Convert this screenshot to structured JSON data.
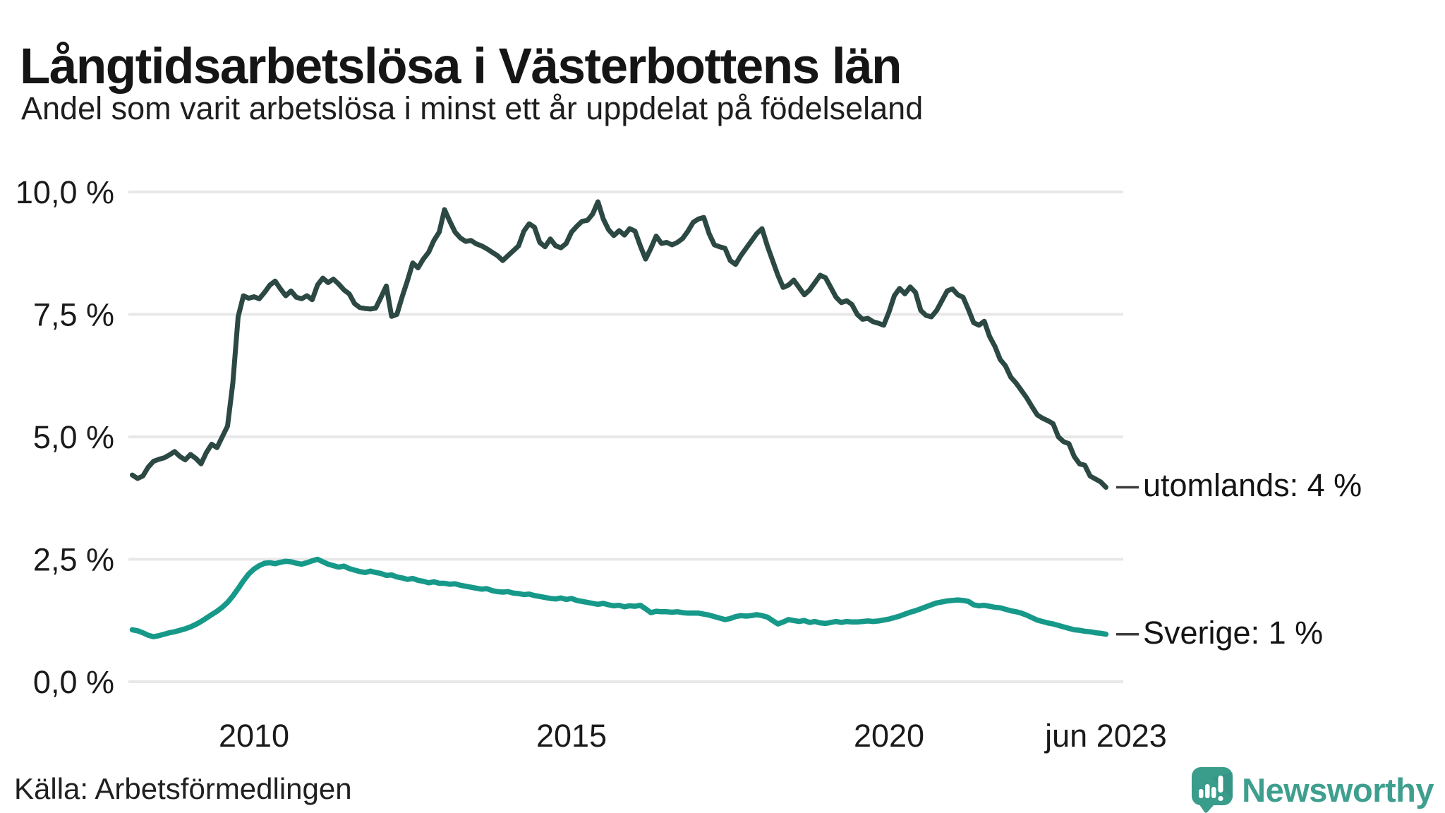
{
  "page": {
    "title": "Långtidsarbetslösa i Västerbottens län",
    "subtitle": "Andel som varit arbetslösa i minst ett år uppdelat på födelseland",
    "source": "Källa: Arbetsförmedlingen",
    "branding": {
      "name": "Newsworthy",
      "icon": "bar-chart-speech-bubble-icon",
      "text_color": "#3f9f8e",
      "bubble_color": "#3a9c8b"
    }
  },
  "chart_data": {
    "type": "line",
    "title": "Långtidsarbetslösa i Västerbottens län",
    "subtitle": "Andel som varit arbetslösa i minst ett år uppdelat på födelseland",
    "grid": true,
    "grid_color": "#e8e8ea",
    "ylim": [
      0,
      10
    ],
    "y_unit": "%",
    "y_ticks": [
      {
        "label": "0,0 %",
        "value": 0
      },
      {
        "label": "2,5 %",
        "value": 2.5
      },
      {
        "label": "5,0 %",
        "value": 5
      },
      {
        "label": "7,5 %",
        "value": 7.5
      },
      {
        "label": "10,0 %",
        "value": 10
      }
    ],
    "x_start": {
      "year": 2008,
      "month": 2
    },
    "x_end": {
      "year": 2023,
      "month": 6
    },
    "x_ticks": [
      {
        "label": "2010",
        "t": 2010.0
      },
      {
        "label": "2015",
        "t": 2015.0
      },
      {
        "label": "2020",
        "t": 2020.0
      },
      {
        "label": "jun 2023",
        "t": 2023.417
      }
    ],
    "series": [
      {
        "name": "utomlands",
        "end_label": "utomlands: 4 %",
        "end_value_text": "4 %",
        "color": "#2c4843",
        "stroke_width": 7,
        "values": [
          4.22,
          4.15,
          4.2,
          4.38,
          4.5,
          4.54,
          4.57,
          4.63,
          4.7,
          4.6,
          4.53,
          4.64,
          4.56,
          4.45,
          4.68,
          4.85,
          4.78,
          5.0,
          5.22,
          6.1,
          7.45,
          7.88,
          7.83,
          7.86,
          7.82,
          7.95,
          8.1,
          8.18,
          8.02,
          7.88,
          7.98,
          7.85,
          7.82,
          7.88,
          7.8,
          8.1,
          8.24,
          8.15,
          8.22,
          8.12,
          8.0,
          7.92,
          7.72,
          7.64,
          7.62,
          7.61,
          7.63,
          7.85,
          8.08,
          7.46,
          7.5,
          7.86,
          8.19,
          8.55,
          8.45,
          8.63,
          8.77,
          9.01,
          9.18,
          9.64,
          9.4,
          9.18,
          9.06,
          8.99,
          9.01,
          8.94,
          8.9,
          8.84,
          8.77,
          8.7,
          8.6,
          8.7,
          8.8,
          8.9,
          9.2,
          9.35,
          9.28,
          8.97,
          8.88,
          9.04,
          8.9,
          8.86,
          8.95,
          9.18,
          9.3,
          9.4,
          9.42,
          9.55,
          9.8,
          9.45,
          9.23,
          9.11,
          9.21,
          9.12,
          9.25,
          9.2,
          8.9,
          8.63,
          8.85,
          9.1,
          8.95,
          8.97,
          8.92,
          8.97,
          9.05,
          9.2,
          9.38,
          9.45,
          9.48,
          9.15,
          8.92,
          8.88,
          8.85,
          8.6,
          8.52,
          8.7,
          8.85,
          9.0,
          9.15,
          9.25,
          8.9,
          8.6,
          8.3,
          8.05,
          8.1,
          8.2,
          8.05,
          7.9,
          8.0,
          8.15,
          8.3,
          8.25,
          8.05,
          7.85,
          7.74,
          7.78,
          7.7,
          7.5,
          7.4,
          7.42,
          7.35,
          7.32,
          7.28,
          7.55,
          7.88,
          8.03,
          7.92,
          8.06,
          7.95,
          7.58,
          7.48,
          7.45,
          7.58,
          7.78,
          7.98,
          8.02,
          7.9,
          7.85,
          7.6,
          7.33,
          7.28,
          7.36,
          7.05,
          6.85,
          6.58,
          6.45,
          6.22,
          6.1,
          5.95,
          5.8,
          5.62,
          5.45,
          5.38,
          5.33,
          5.27,
          5.0,
          4.9,
          4.86,
          4.6,
          4.45,
          4.42,
          4.2,
          4.14,
          4.08,
          3.97
        ]
      },
      {
        "name": "Sverige",
        "end_label": "Sverige: 1 %",
        "end_value_text": "1 %",
        "color": "#17998a",
        "stroke_width": 7.5,
        "values": [
          1.06,
          1.04,
          1.0,
          0.95,
          0.92,
          0.94,
          0.97,
          1.0,
          1.02,
          1.05,
          1.08,
          1.12,
          1.17,
          1.23,
          1.3,
          1.37,
          1.44,
          1.52,
          1.62,
          1.75,
          1.9,
          2.06,
          2.2,
          2.3,
          2.37,
          2.42,
          2.43,
          2.41,
          2.44,
          2.46,
          2.45,
          2.42,
          2.4,
          2.43,
          2.47,
          2.5,
          2.45,
          2.4,
          2.37,
          2.34,
          2.36,
          2.31,
          2.28,
          2.25,
          2.23,
          2.26,
          2.23,
          2.21,
          2.17,
          2.18,
          2.14,
          2.12,
          2.09,
          2.11,
          2.07,
          2.05,
          2.02,
          2.04,
          2.01,
          2.01,
          1.99,
          2.0,
          1.97,
          1.95,
          1.93,
          1.91,
          1.89,
          1.9,
          1.86,
          1.84,
          1.83,
          1.84,
          1.81,
          1.8,
          1.78,
          1.79,
          1.76,
          1.74,
          1.72,
          1.7,
          1.69,
          1.71,
          1.68,
          1.7,
          1.66,
          1.64,
          1.62,
          1.6,
          1.58,
          1.6,
          1.57,
          1.55,
          1.56,
          1.53,
          1.55,
          1.54,
          1.56,
          1.49,
          1.41,
          1.44,
          1.43,
          1.43,
          1.42,
          1.43,
          1.41,
          1.4,
          1.4,
          1.4,
          1.38,
          1.36,
          1.33,
          1.3,
          1.27,
          1.29,
          1.33,
          1.35,
          1.34,
          1.35,
          1.37,
          1.35,
          1.32,
          1.25,
          1.18,
          1.22,
          1.27,
          1.25,
          1.23,
          1.25,
          1.21,
          1.23,
          1.2,
          1.19,
          1.21,
          1.23,
          1.21,
          1.23,
          1.22,
          1.22,
          1.23,
          1.24,
          1.23,
          1.24,
          1.26,
          1.28,
          1.31,
          1.34,
          1.38,
          1.42,
          1.45,
          1.49,
          1.53,
          1.57,
          1.61,
          1.63,
          1.65,
          1.66,
          1.67,
          1.66,
          1.64,
          1.57,
          1.55,
          1.56,
          1.54,
          1.52,
          1.51,
          1.48,
          1.45,
          1.43,
          1.4,
          1.36,
          1.31,
          1.26,
          1.23,
          1.2,
          1.18,
          1.15,
          1.12,
          1.09,
          1.06,
          1.05,
          1.03,
          1.02,
          1.0,
          0.99,
          0.97
        ]
      }
    ]
  }
}
